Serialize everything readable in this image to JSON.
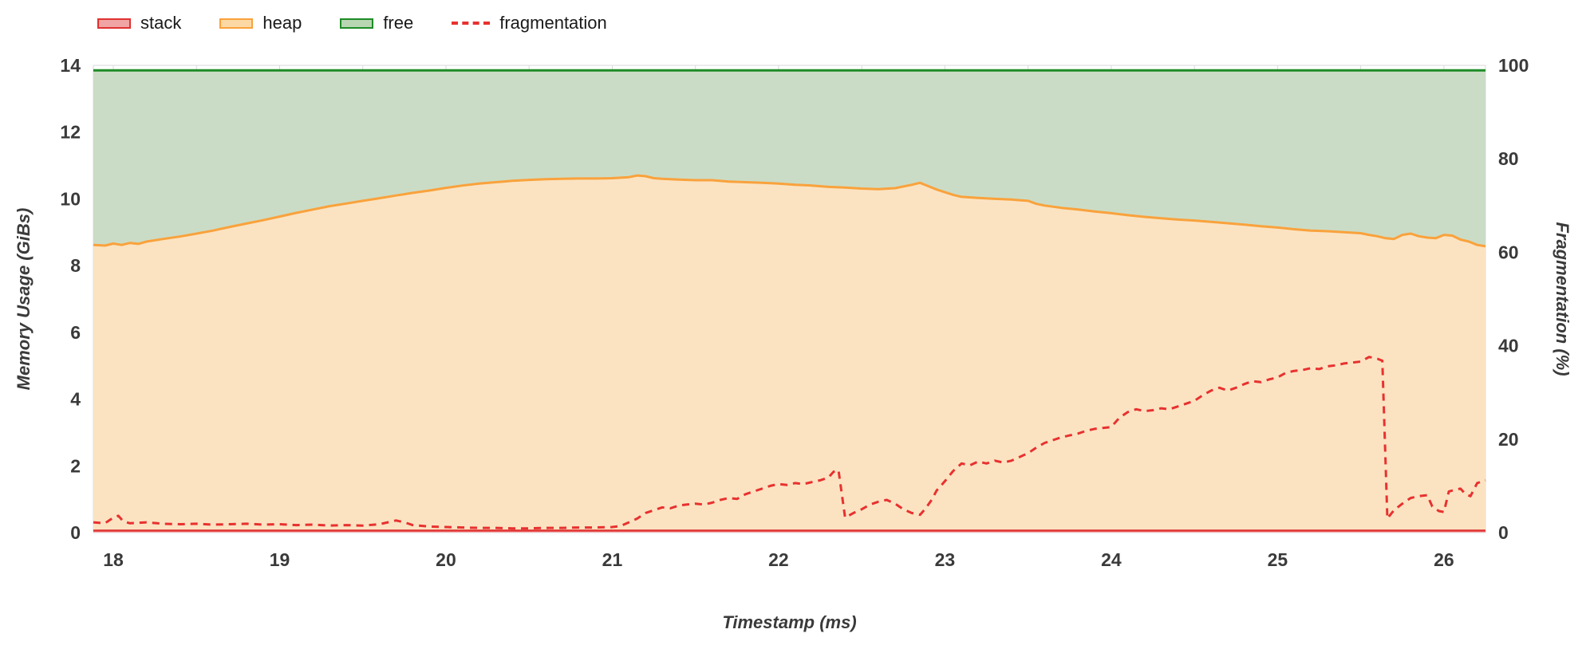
{
  "chart_data": {
    "type": "area",
    "title": "",
    "xlabel": "Timestamp (ms)",
    "ylabel_left": "Memory Usage (GiBs)",
    "ylabel_right": "Fragmentation (%)",
    "xlim": [
      17.88,
      26.25
    ],
    "ylim_left": [
      0,
      14
    ],
    "ylim_right": [
      0,
      100
    ],
    "x_ticks": [
      18,
      19,
      20,
      21,
      22,
      23,
      24,
      25,
      26
    ],
    "y_left_ticks": [
      0,
      2,
      4,
      6,
      8,
      10,
      12,
      14
    ],
    "y_right_ticks": [
      0,
      20,
      40,
      60,
      80,
      100
    ],
    "x_minor_step": 0.5,
    "grid": true,
    "legend_position": "top-left",
    "colors": {
      "grid": "#d9d9d9",
      "tick_text": "#3a3a3a",
      "background": "#ffffff"
    },
    "legend": [
      {
        "label": "stack",
        "line_color": "#e03131",
        "fill_color": "#f0a4a4",
        "style": "box"
      },
      {
        "label": "heap",
        "line_color": "#f9a23c",
        "fill_color": "#fcd9a4",
        "style": "box"
      },
      {
        "label": "free",
        "line_color": "#1e8b27",
        "fill_color": "#b8d6b2",
        "style": "box"
      },
      {
        "label": "fragmentation",
        "line_color": "#e8312f",
        "style": "dash"
      }
    ],
    "series": [
      {
        "name": "free",
        "axis": "left",
        "line_color": "#1e8b27",
        "fill_color": "#cbdcc6",
        "line_width": 3,
        "points": [
          [
            17.88,
            13.85
          ],
          [
            26.25,
            13.85
          ]
        ]
      },
      {
        "name": "heap",
        "axis": "left",
        "line_color": "#f9a23c",
        "fill_color": "#fbe3c2",
        "line_width": 3,
        "points": [
          [
            17.88,
            8.62
          ],
          [
            17.95,
            8.6
          ],
          [
            18.0,
            8.66
          ],
          [
            18.05,
            8.62
          ],
          [
            18.1,
            8.68
          ],
          [
            18.15,
            8.65
          ],
          [
            18.2,
            8.72
          ],
          [
            18.3,
            8.8
          ],
          [
            18.4,
            8.87
          ],
          [
            18.5,
            8.96
          ],
          [
            18.6,
            9.05
          ],
          [
            18.7,
            9.16
          ],
          [
            18.8,
            9.26
          ],
          [
            18.9,
            9.36
          ],
          [
            19.0,
            9.47
          ],
          [
            19.1,
            9.58
          ],
          [
            19.2,
            9.68
          ],
          [
            19.3,
            9.78
          ],
          [
            19.4,
            9.86
          ],
          [
            19.5,
            9.94
          ],
          [
            19.6,
            10.02
          ],
          [
            19.7,
            10.1
          ],
          [
            19.8,
            10.18
          ],
          [
            19.9,
            10.25
          ],
          [
            20.0,
            10.33
          ],
          [
            20.1,
            10.4
          ],
          [
            20.2,
            10.46
          ],
          [
            20.3,
            10.5
          ],
          [
            20.4,
            10.54
          ],
          [
            20.5,
            10.57
          ],
          [
            20.6,
            10.59
          ],
          [
            20.7,
            10.6
          ],
          [
            20.8,
            10.61
          ],
          [
            20.9,
            10.61
          ],
          [
            21.0,
            10.62
          ],
          [
            21.1,
            10.65
          ],
          [
            21.15,
            10.7
          ],
          [
            21.2,
            10.68
          ],
          [
            21.25,
            10.62
          ],
          [
            21.3,
            10.6
          ],
          [
            21.4,
            10.58
          ],
          [
            21.5,
            10.56
          ],
          [
            21.6,
            10.56
          ],
          [
            21.7,
            10.52
          ],
          [
            21.8,
            10.5
          ],
          [
            21.9,
            10.48
          ],
          [
            22.0,
            10.46
          ],
          [
            22.1,
            10.42
          ],
          [
            22.2,
            10.4
          ],
          [
            22.3,
            10.36
          ],
          [
            22.4,
            10.34
          ],
          [
            22.5,
            10.31
          ],
          [
            22.6,
            10.29
          ],
          [
            22.7,
            10.32
          ],
          [
            22.8,
            10.42
          ],
          [
            22.85,
            10.48
          ],
          [
            22.9,
            10.38
          ],
          [
            22.95,
            10.28
          ],
          [
            23.0,
            10.2
          ],
          [
            23.05,
            10.12
          ],
          [
            23.1,
            10.06
          ],
          [
            23.2,
            10.03
          ],
          [
            23.3,
            10.0
          ],
          [
            23.4,
            9.98
          ],
          [
            23.5,
            9.94
          ],
          [
            23.55,
            9.85
          ],
          [
            23.6,
            9.8
          ],
          [
            23.7,
            9.73
          ],
          [
            23.8,
            9.68
          ],
          [
            23.9,
            9.62
          ],
          [
            24.0,
            9.57
          ],
          [
            24.1,
            9.51
          ],
          [
            24.2,
            9.46
          ],
          [
            24.3,
            9.42
          ],
          [
            24.4,
            9.38
          ],
          [
            24.5,
            9.35
          ],
          [
            24.6,
            9.31
          ],
          [
            24.7,
            9.27
          ],
          [
            24.8,
            9.23
          ],
          [
            24.9,
            9.18
          ],
          [
            25.0,
            9.14
          ],
          [
            25.1,
            9.09
          ],
          [
            25.2,
            9.05
          ],
          [
            25.3,
            9.03
          ],
          [
            25.4,
            9.0
          ],
          [
            25.5,
            8.97
          ],
          [
            25.55,
            8.92
          ],
          [
            25.6,
            8.88
          ],
          [
            25.65,
            8.82
          ],
          [
            25.7,
            8.8
          ],
          [
            25.75,
            8.92
          ],
          [
            25.8,
            8.96
          ],
          [
            25.85,
            8.88
          ],
          [
            25.9,
            8.84
          ],
          [
            25.95,
            8.82
          ],
          [
            26.0,
            8.92
          ],
          [
            26.05,
            8.9
          ],
          [
            26.1,
            8.78
          ],
          [
            26.15,
            8.72
          ],
          [
            26.2,
            8.62
          ],
          [
            26.25,
            8.58
          ]
        ]
      },
      {
        "name": "stack",
        "axis": "left",
        "line_color": "#e03131",
        "fill_color": "#f6b4b4",
        "line_width": 2.5,
        "points": [
          [
            17.88,
            0.06
          ],
          [
            26.25,
            0.06
          ]
        ]
      },
      {
        "name": "fragmentation",
        "axis": "right",
        "line_color": "#e8312f",
        "line_style": "dashed",
        "line_width": 3,
        "points": [
          [
            17.88,
            2.2
          ],
          [
            17.95,
            2.0
          ],
          [
            18.0,
            3.2
          ],
          [
            18.03,
            3.6
          ],
          [
            18.06,
            2.4
          ],
          [
            18.1,
            2.0
          ],
          [
            18.2,
            2.2
          ],
          [
            18.3,
            1.9
          ],
          [
            18.4,
            1.8
          ],
          [
            18.5,
            1.9
          ],
          [
            18.6,
            1.7
          ],
          [
            18.7,
            1.8
          ],
          [
            18.8,
            1.9
          ],
          [
            18.9,
            1.7
          ],
          [
            19.0,
            1.8
          ],
          [
            19.1,
            1.6
          ],
          [
            19.2,
            1.7
          ],
          [
            19.3,
            1.5
          ],
          [
            19.4,
            1.6
          ],
          [
            19.5,
            1.5
          ],
          [
            19.6,
            1.8
          ],
          [
            19.7,
            2.6
          ],
          [
            19.75,
            2.2
          ],
          [
            19.8,
            1.6
          ],
          [
            19.9,
            1.3
          ],
          [
            20.0,
            1.2
          ],
          [
            20.1,
            1.1
          ],
          [
            20.2,
            1.0
          ],
          [
            20.3,
            1.0
          ],
          [
            20.4,
            0.9
          ],
          [
            20.5,
            0.9
          ],
          [
            20.6,
            1.0
          ],
          [
            20.7,
            1.0
          ],
          [
            20.8,
            1.1
          ],
          [
            20.9,
            1.1
          ],
          [
            21.0,
            1.2
          ],
          [
            21.05,
            1.4
          ],
          [
            21.1,
            2.2
          ],
          [
            21.15,
            3.0
          ],
          [
            21.2,
            4.2
          ],
          [
            21.25,
            4.8
          ],
          [
            21.3,
            5.4
          ],
          [
            21.35,
            5.2
          ],
          [
            21.4,
            5.8
          ],
          [
            21.45,
            6.0
          ],
          [
            21.5,
            6.2
          ],
          [
            21.55,
            6.0
          ],
          [
            21.6,
            6.4
          ],
          [
            21.65,
            7.0
          ],
          [
            21.7,
            7.4
          ],
          [
            21.75,
            7.2
          ],
          [
            21.8,
            8.2
          ],
          [
            21.85,
            8.8
          ],
          [
            21.9,
            9.4
          ],
          [
            21.95,
            10.0
          ],
          [
            22.0,
            10.4
          ],
          [
            22.05,
            10.2
          ],
          [
            22.1,
            10.6
          ],
          [
            22.15,
            10.4
          ],
          [
            22.2,
            10.8
          ],
          [
            22.25,
            11.2
          ],
          [
            22.3,
            11.8
          ],
          [
            22.33,
            13.0
          ],
          [
            22.36,
            13.4
          ],
          [
            22.4,
            3.2
          ],
          [
            22.45,
            4.2
          ],
          [
            22.5,
            5.0
          ],
          [
            22.55,
            6.0
          ],
          [
            22.6,
            6.6
          ],
          [
            22.65,
            7.0
          ],
          [
            22.7,
            6.2
          ],
          [
            22.75,
            5.0
          ],
          [
            22.8,
            4.2
          ],
          [
            22.85,
            3.8
          ],
          [
            22.88,
            5.0
          ],
          [
            22.92,
            7.0
          ],
          [
            22.95,
            9.0
          ],
          [
            23.0,
            11.0
          ],
          [
            23.05,
            13.2
          ],
          [
            23.1,
            14.8
          ],
          [
            23.15,
            14.4
          ],
          [
            23.2,
            15.2
          ],
          [
            23.25,
            14.8
          ],
          [
            23.3,
            15.4
          ],
          [
            23.35,
            15.0
          ],
          [
            23.4,
            15.4
          ],
          [
            23.45,
            16.2
          ],
          [
            23.5,
            17.0
          ],
          [
            23.55,
            18.2
          ],
          [
            23.6,
            19.2
          ],
          [
            23.65,
            19.8
          ],
          [
            23.7,
            20.4
          ],
          [
            23.75,
            20.8
          ],
          [
            23.8,
            21.2
          ],
          [
            23.85,
            21.8
          ],
          [
            23.9,
            22.2
          ],
          [
            23.95,
            22.4
          ],
          [
            24.0,
            22.6
          ],
          [
            24.05,
            24.6
          ],
          [
            24.1,
            25.8
          ],
          [
            24.15,
            26.4
          ],
          [
            24.2,
            26.0
          ],
          [
            24.25,
            26.2
          ],
          [
            24.3,
            26.6
          ],
          [
            24.35,
            26.4
          ],
          [
            24.4,
            27.0
          ],
          [
            24.45,
            27.6
          ],
          [
            24.5,
            28.2
          ],
          [
            24.55,
            29.4
          ],
          [
            24.6,
            30.4
          ],
          [
            24.65,
            31.0
          ],
          [
            24.7,
            30.4
          ],
          [
            24.75,
            31.0
          ],
          [
            24.8,
            31.8
          ],
          [
            24.85,
            32.4
          ],
          [
            24.9,
            32.2
          ],
          [
            24.95,
            32.8
          ],
          [
            25.0,
            33.2
          ],
          [
            25.05,
            34.2
          ],
          [
            25.1,
            34.6
          ],
          [
            25.15,
            34.8
          ],
          [
            25.2,
            35.2
          ],
          [
            25.25,
            35.0
          ],
          [
            25.3,
            35.6
          ],
          [
            25.35,
            35.8
          ],
          [
            25.4,
            36.2
          ],
          [
            25.45,
            36.4
          ],
          [
            25.5,
            36.6
          ],
          [
            25.55,
            37.6
          ],
          [
            25.6,
            37.2
          ],
          [
            25.63,
            36.8
          ],
          [
            25.66,
            3.0
          ],
          [
            25.7,
            4.8
          ],
          [
            25.75,
            6.2
          ],
          [
            25.8,
            7.4
          ],
          [
            25.85,
            7.8
          ],
          [
            25.9,
            8.0
          ],
          [
            25.93,
            5.6
          ],
          [
            25.97,
            4.6
          ],
          [
            26.0,
            4.4
          ],
          [
            26.03,
            8.8
          ],
          [
            26.07,
            9.2
          ],
          [
            26.1,
            9.4
          ],
          [
            26.13,
            8.2
          ],
          [
            26.16,
            7.8
          ],
          [
            26.2,
            10.6
          ],
          [
            26.25,
            11.2
          ]
        ]
      }
    ]
  }
}
